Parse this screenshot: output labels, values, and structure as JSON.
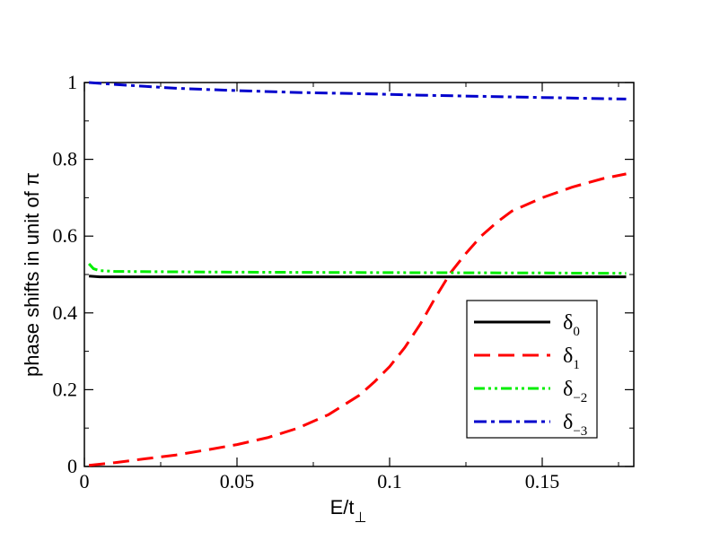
{
  "chart_data": {
    "type": "line",
    "xlabel": "E/t",
    "xlabel_subscript": "⊥",
    "ylabel": "phase shifts in unit of π",
    "xlim": [
      0,
      0.18
    ],
    "ylim": [
      0,
      1
    ],
    "x_ticks": [
      0,
      0.05,
      0.1,
      0.15
    ],
    "x_tick_labels": [
      "0",
      "0.05",
      "0.1",
      "0.15"
    ],
    "y_ticks": [
      0,
      0.2,
      0.4,
      0.6,
      0.8,
      1
    ],
    "y_tick_labels": [
      "0",
      "0.2",
      "0.4",
      "0.6",
      "0.8",
      "1"
    ],
    "grid": false,
    "legend_position": "bottom-right",
    "series": [
      {
        "name": "δ",
        "subscript": "0",
        "color": "#000000",
        "dash": "solid",
        "x": [
          0.0015,
          0.005,
          0.02,
          0.05,
          0.1,
          0.15,
          0.1775
        ],
        "y": [
          0.496,
          0.494,
          0.494,
          0.494,
          0.494,
          0.494,
          0.494
        ]
      },
      {
        "name": "δ",
        "subscript": "1",
        "color": "#ff0000",
        "dash": "long-dash",
        "x": [
          0.0015,
          0.01,
          0.02,
          0.03,
          0.04,
          0.05,
          0.06,
          0.07,
          0.08,
          0.09,
          0.095,
          0.1,
          0.105,
          0.11,
          0.115,
          0.12,
          0.125,
          0.13,
          0.135,
          0.14,
          0.15,
          0.16,
          0.17,
          0.1775
        ],
        "y": [
          0.003,
          0.01,
          0.02,
          0.03,
          0.043,
          0.057,
          0.075,
          0.1,
          0.135,
          0.185,
          0.22,
          0.26,
          0.31,
          0.37,
          0.44,
          0.505,
          0.555,
          0.6,
          0.635,
          0.665,
          0.7,
          0.728,
          0.75,
          0.762
        ]
      },
      {
        "name": "δ",
        "subscript": "−2",
        "color": "#00ee00",
        "dash": "dash-dot-dot",
        "x": [
          0.0015,
          0.003,
          0.005,
          0.01,
          0.05,
          0.1,
          0.15,
          0.1775
        ],
        "y": [
          0.528,
          0.515,
          0.51,
          0.508,
          0.506,
          0.505,
          0.504,
          0.503
        ]
      },
      {
        "name": "δ",
        "subscript": "−3",
        "color": "#0000cc",
        "dash": "dash-dot",
        "x": [
          0.0015,
          0.01,
          0.02,
          0.03,
          0.05,
          0.07,
          0.09,
          0.11,
          0.13,
          0.15,
          0.1775
        ],
        "y": [
          1.0,
          0.995,
          0.99,
          0.985,
          0.979,
          0.974,
          0.971,
          0.967,
          0.964,
          0.961,
          0.957
        ]
      }
    ]
  }
}
